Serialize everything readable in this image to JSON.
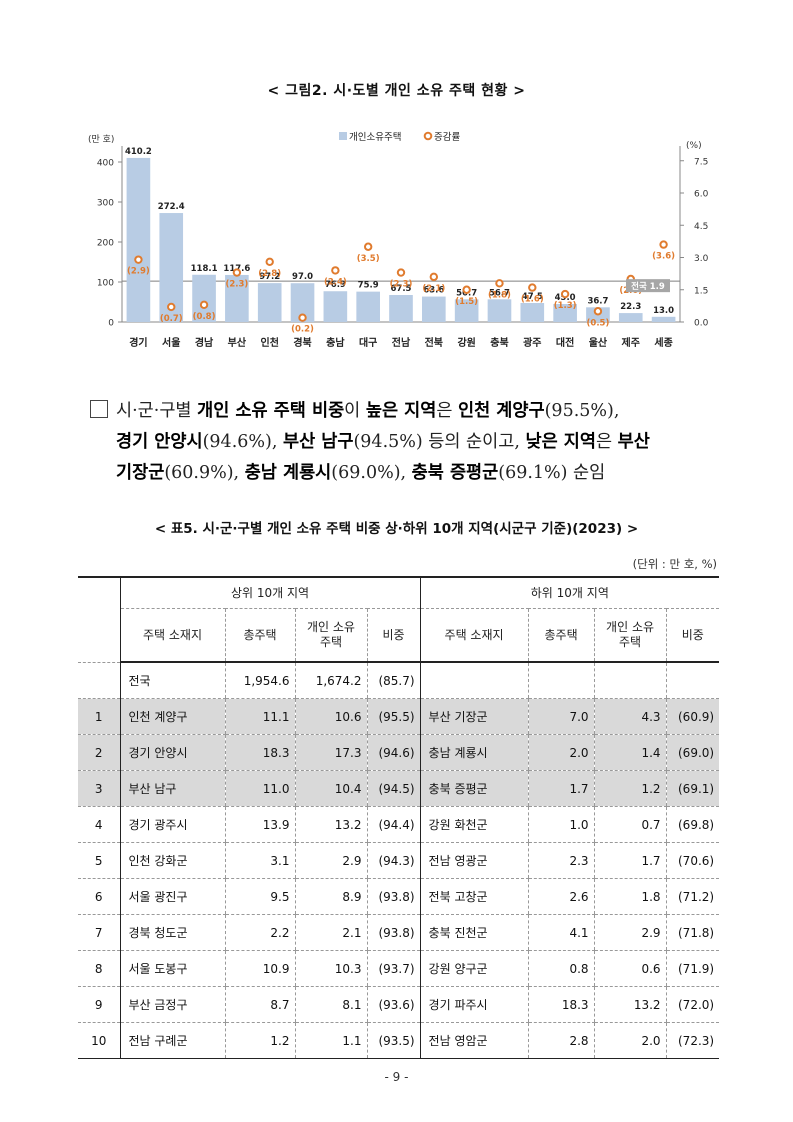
{
  "figure_title": "< 그림2. 시·도별 개인 소유 주택 현황 >",
  "chart_data": {
    "type": "bar",
    "title": "",
    "categories": [
      "경기",
      "서울",
      "경남",
      "부산",
      "인천",
      "경북",
      "충남",
      "대구",
      "전남",
      "전북",
      "강원",
      "충북",
      "광주",
      "대전",
      "울산",
      "제주",
      "세종"
    ],
    "series": [
      {
        "name": "개인소유주택",
        "type": "bar",
        "axis": "left",
        "color": "#b8cce4",
        "values": [
          410.2,
          272.4,
          118.1,
          117.6,
          97.2,
          97.0,
          76.9,
          75.9,
          67.5,
          63.6,
          56.7,
          56.7,
          47.5,
          45.0,
          36.7,
          22.3,
          13.0
        ],
        "labels": [
          "410.2",
          "272.4",
          "118.1",
          "117.6",
          "97.2",
          "97.0",
          "76.9",
          "75.9",
          "67.5",
          "63.6",
          "56.7",
          "56.7",
          "47.5",
          "45.0",
          "36.7",
          "22.3",
          "13.0"
        ]
      },
      {
        "name": "증감률",
        "type": "marker",
        "axis": "right",
        "color": "#e07b2e",
        "values": [
          2.9,
          0.7,
          0.8,
          2.3,
          2.8,
          0.2,
          2.4,
          3.5,
          2.3,
          2.1,
          1.5,
          1.8,
          1.6,
          1.3,
          0.5,
          2.0,
          3.6
        ],
        "labels": [
          "(2.9)",
          "(0.7)",
          "(0.8)",
          "(2.3)",
          "(2.8)",
          "(0.2)",
          "(2.4)",
          "(3.5)",
          "(2.3)",
          "(2.1)",
          "(1.5)",
          "(1.8)",
          "(1.6)",
          "(1.3)",
          "(0.5)",
          "(2.0)",
          "(3.6)"
        ]
      }
    ],
    "reference_line": {
      "label": "전국 1.9",
      "value": 1.9,
      "axis": "right"
    },
    "y_left": {
      "unit_label": "(만 호)",
      "ylim": [
        0,
        430
      ],
      "ticks": [
        "0",
        "100",
        "200",
        "300",
        "400"
      ]
    },
    "y_right": {
      "unit_label": "(%)",
      "ylim": [
        0,
        8.0
      ],
      "ticks": [
        "0.0",
        "1.5",
        "3.0",
        "4.5",
        "6.0",
        "7.5"
      ]
    },
    "legend": {
      "position": "top",
      "items": [
        "개인소유주택",
        "증감률"
      ]
    },
    "grid": false
  },
  "paragraph": {
    "prefix": "시·군·구별 ",
    "b1": "개인 소유 주택 비중",
    "t1": "이 ",
    "b2": "높은 지역",
    "t2": "은 ",
    "b3": "인천 계양구",
    "t3": "(95.5%),",
    "b4": "경기 안양시",
    "t4": "(94.6%), ",
    "b5": "부산 남구",
    "t5": "(94.5%) 등의 순이고, ",
    "b6": "낮은 지역",
    "t6": "은 ",
    "b7": "부산",
    "b8": "기장군",
    "t8": "(60.9%), ",
    "b9": "충남 계룡시",
    "t9": "(69.0%), ",
    "b10": "충북 증평군",
    "t10": "(69.1%) 순임"
  },
  "table_title": "< 표5. 시·군·구별 개인 소유 주택 비중 상·하위 10개 지역(시군구 기준)(2023) >",
  "table_unit": "(단위 : 만 호, %)",
  "table": {
    "group_top": "상위 10개 지역",
    "group_bottom": "하위 10개 지역",
    "headers": {
      "region": "주택 소재지",
      "total": "총주택",
      "personal": "개인 소유\n주택",
      "ratio": "비중"
    },
    "national": {
      "name": "전국",
      "total": "1,954.6",
      "personal": "1,674.2",
      "ratio": "(85.7)"
    },
    "rows": [
      {
        "rank": "1",
        "top_name": "인천 계양구",
        "top_total": "11.1",
        "top_personal": "10.6",
        "top_ratio": "(95.5)",
        "bot_name": "부산 기장군",
        "bot_total": "7.0",
        "bot_personal": "4.3",
        "bot_ratio": "(60.9)"
      },
      {
        "rank": "2",
        "top_name": "경기 안양시",
        "top_total": "18.3",
        "top_personal": "17.3",
        "top_ratio": "(94.6)",
        "bot_name": "충남 계룡시",
        "bot_total": "2.0",
        "bot_personal": "1.4",
        "bot_ratio": "(69.0)"
      },
      {
        "rank": "3",
        "top_name": "부산 남구",
        "top_total": "11.0",
        "top_personal": "10.4",
        "top_ratio": "(94.5)",
        "bot_name": "충북 증평군",
        "bot_total": "1.7",
        "bot_personal": "1.2",
        "bot_ratio": "(69.1)"
      },
      {
        "rank": "4",
        "top_name": "경기 광주시",
        "top_total": "13.9",
        "top_personal": "13.2",
        "top_ratio": "(94.4)",
        "bot_name": "강원 화천군",
        "bot_total": "1.0",
        "bot_personal": "0.7",
        "bot_ratio": "(69.8)"
      },
      {
        "rank": "5",
        "top_name": "인천 강화군",
        "top_total": "3.1",
        "top_personal": "2.9",
        "top_ratio": "(94.3)",
        "bot_name": "전남 영광군",
        "bot_total": "2.3",
        "bot_personal": "1.7",
        "bot_ratio": "(70.6)"
      },
      {
        "rank": "6",
        "top_name": "서울 광진구",
        "top_total": "9.5",
        "top_personal": "8.9",
        "top_ratio": "(93.8)",
        "bot_name": "전북 고창군",
        "bot_total": "2.6",
        "bot_personal": "1.8",
        "bot_ratio": "(71.2)"
      },
      {
        "rank": "7",
        "top_name": "경북 청도군",
        "top_total": "2.2",
        "top_personal": "2.1",
        "top_ratio": "(93.8)",
        "bot_name": "충북 진천군",
        "bot_total": "4.1",
        "bot_personal": "2.9",
        "bot_ratio": "(71.8)"
      },
      {
        "rank": "8",
        "top_name": "서울 도봉구",
        "top_total": "10.9",
        "top_personal": "10.3",
        "top_ratio": "(93.7)",
        "bot_name": "강원 양구군",
        "bot_total": "0.8",
        "bot_personal": "0.6",
        "bot_ratio": "(71.9)"
      },
      {
        "rank": "9",
        "top_name": "부산 금정구",
        "top_total": "8.7",
        "top_personal": "8.1",
        "top_ratio": "(93.6)",
        "bot_name": "경기 파주시",
        "bot_total": "18.3",
        "bot_personal": "13.2",
        "bot_ratio": "(72.0)"
      },
      {
        "rank": "10",
        "top_name": "전남 구례군",
        "top_total": "1.2",
        "top_personal": "1.1",
        "top_ratio": "(93.5)",
        "bot_name": "전남 영암군",
        "bot_total": "2.8",
        "bot_personal": "2.0",
        "bot_ratio": "(72.3)"
      }
    ]
  },
  "page_number": "- 9 -"
}
